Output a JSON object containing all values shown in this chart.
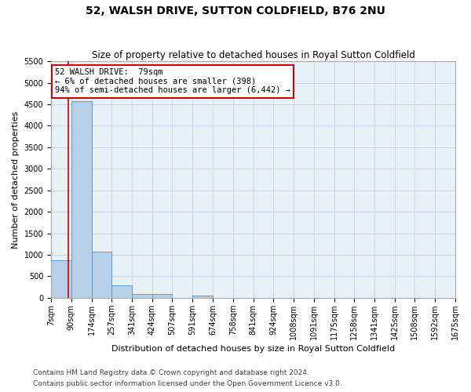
{
  "title1": "52, WALSH DRIVE, SUTTON COLDFIELD, B76 2NU",
  "title2": "Size of property relative to detached houses in Royal Sutton Coldfield",
  "xlabel": "Distribution of detached houses by size in Royal Sutton Coldfield",
  "ylabel": "Number of detached properties",
  "bin_edges": [
    7,
    90,
    174,
    257,
    341,
    424,
    507,
    591,
    674,
    758,
    841,
    924,
    1008,
    1091,
    1175,
    1258,
    1341,
    1425,
    1508,
    1592,
    1675
  ],
  "bar_heights": [
    880,
    4570,
    1070,
    295,
    95,
    90,
    0,
    60,
    0,
    0,
    0,
    0,
    0,
    0,
    0,
    0,
    0,
    0,
    0,
    0
  ],
  "bar_color": "#b8d0e8",
  "bar_edge_color": "#5b9bd5",
  "grid_color": "#c8d8ea",
  "background_color": "#e8f1f8",
  "property_line_x": 79,
  "property_line_color": "#cc0000",
  "annotation_text": "52 WALSH DRIVE:  79sqm\n← 6% of detached houses are smaller (398)\n94% of semi-detached houses are larger (6,442) →",
  "annotation_box_color": "#cc0000",
  "ylim": [
    0,
    5500
  ],
  "yticks": [
    0,
    500,
    1000,
    1500,
    2000,
    2500,
    3000,
    3500,
    4000,
    4500,
    5000,
    5500
  ],
  "footnote1": "Contains HM Land Registry data © Crown copyright and database right 2024.",
  "footnote2": "Contains public sector information licensed under the Open Government Licence v3.0.",
  "title1_fontsize": 10,
  "title2_fontsize": 8.5,
  "xlabel_fontsize": 8,
  "ylabel_fontsize": 8,
  "tick_fontsize": 7,
  "annotation_fontsize": 7.5,
  "footnote_fontsize": 6.5
}
